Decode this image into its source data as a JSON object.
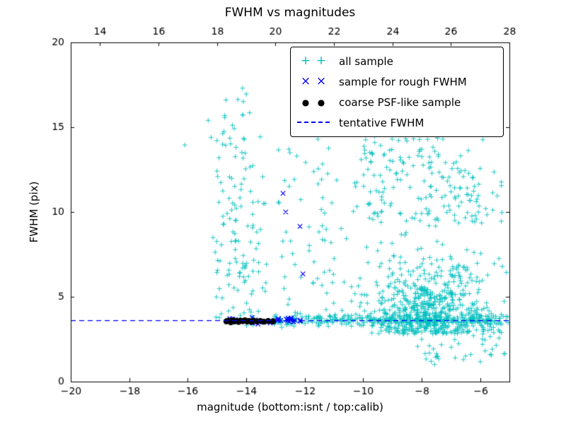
{
  "chart_data": {
    "type": "scatter",
    "title": "FWHM vs magnitudes",
    "xlabel": "magnitude (bottom:isnt / top:calib)",
    "ylabel": "FWHM (pix)",
    "xlim": [
      -20,
      -5
    ],
    "ylim": [
      0,
      20
    ],
    "x_ticks_bottom": [
      -20,
      -18,
      -16,
      -14,
      -12,
      -10,
      -8,
      -6
    ],
    "x_ticks_top_calib": [
      14,
      16,
      18,
      20,
      22,
      24,
      26,
      28
    ],
    "calib_offset": 33,
    "y_ticks": [
      0,
      5,
      10,
      15,
      20
    ],
    "grid": false,
    "legend_position": "upper-right",
    "tentative_fwhm": 3.6,
    "legend_glyphs": {
      "plus": "+",
      "x": "×",
      "circle": "●"
    },
    "series": [
      {
        "name": "all sample",
        "marker": "plus",
        "color": "#00bfbf",
        "alpha": 0.85,
        "clusters": [
          {
            "seed": 11,
            "n": 75,
            "x": {
              "type": "uniform",
              "min": -15.15,
              "max": -13.3
            },
            "y": {
              "type": "uniform",
              "min": 3.3,
              "max": 9.2
            }
          },
          {
            "seed": 12,
            "n": 50,
            "x": {
              "type": "uniform",
              "min": -15.05,
              "max": -13.35
            },
            "y": {
              "type": "uniform",
              "min": 9.2,
              "max": 14.6
            }
          },
          {
            "seed": 13,
            "n": 14,
            "x": {
              "type": "uniform",
              "min": -14.85,
              "max": -13.55
            },
            "y": {
              "type": "uniform",
              "min": 14.6,
              "max": 17.7
            }
          },
          {
            "seed": 14,
            "n": 26,
            "x": {
              "type": "uniform",
              "min": -12.95,
              "max": -11.9
            },
            "y": {
              "type": "uniform",
              "min": 3.9,
              "max": 14.2
            }
          },
          {
            "seed": 15,
            "n": 16,
            "x": {
              "type": "uniform",
              "min": -11.75,
              "max": -10.85
            },
            "y": {
              "type": "uniform",
              "min": 9.8,
              "max": 16.6
            }
          },
          {
            "seed": 16,
            "n": 620,
            "x": {
              "type": "normal",
              "mean": -7.8,
              "sd": 1.05,
              "min": -10.4,
              "max": -5.05
            },
            "y": {
              "type": "halfnormal",
              "base": 2.8,
              "sd": 2.1,
              "max": 9.6
            }
          },
          {
            "seed": 17,
            "n": 150,
            "x": {
              "type": "uniform",
              "min": -10.05,
              "max": -5.9
            },
            "y": {
              "type": "uniform",
              "min": 9.3,
              "max": 14.7
            }
          },
          {
            "seed": 18,
            "n": 30,
            "x": {
              "type": "uniform",
              "min": -7.3,
              "max": -5.15
            },
            "y": {
              "type": "uniform",
              "min": 9.0,
              "max": 13.0
            }
          },
          {
            "seed": 19,
            "n": 300,
            "x": {
              "type": "uniform",
              "min": -13.05,
              "max": -5.0
            },
            "y": {
              "type": "normal",
              "mean": 3.62,
              "sd": 0.16,
              "min": 3.1,
              "max": 4.2
            }
          },
          {
            "seed": 20,
            "n": 45,
            "x": {
              "type": "uniform",
              "min": -8.2,
              "max": -5.05
            },
            "y": {
              "type": "uniform",
              "min": 1.0,
              "max": 3.1
            }
          },
          {
            "seed": 21,
            "n": 26,
            "x": {
              "type": "uniform",
              "min": -12.0,
              "max": -10.45
            },
            "y": {
              "type": "uniform",
              "min": 3.9,
              "max": 9.6
            }
          },
          {
            "seed": 22,
            "n": 12,
            "x": {
              "type": "uniform",
              "min": -10.45,
              "max": -9.4
            },
            "y": {
              "type": "uniform",
              "min": 9.5,
              "max": 13.5
            }
          }
        ],
        "outliers": [
          [
            -16.1,
            13.95
          ],
          [
            -15.3,
            15.4
          ],
          [
            -15.2,
            14.4
          ],
          [
            -8.8,
            17.0
          ],
          [
            -8.0,
            16.2
          ],
          [
            -7.2,
            15.6
          ],
          [
            -6.5,
            16.8
          ],
          [
            -9.3,
            15.1
          ]
        ]
      },
      {
        "name": "sample for rough FWHM",
        "marker": "x",
        "color": "#0000ff",
        "alpha": 1,
        "clusters": [
          {
            "seed": 31,
            "n": 36,
            "x": {
              "type": "uniform",
              "min": -14.65,
              "max": -12.05
            },
            "y": {
              "type": "normal",
              "mean": 3.63,
              "sd": 0.1,
              "min": 3.35,
              "max": 3.95
            }
          }
        ],
        "outliers": [
          [
            -12.74,
            11.1
          ],
          [
            -12.65,
            10.0
          ],
          [
            -12.16,
            9.15
          ],
          [
            -12.06,
            6.35
          ]
        ]
      },
      {
        "name": "coarse PSF-like sample",
        "marker": "circle",
        "color": "#000000",
        "alpha": 1,
        "points": [
          [
            -14.68,
            3.55
          ],
          [
            -14.6,
            3.6
          ],
          [
            -14.53,
            3.5
          ],
          [
            -14.46,
            3.62
          ],
          [
            -14.4,
            3.55
          ],
          [
            -14.33,
            3.58
          ],
          [
            -14.26,
            3.52
          ],
          [
            -14.2,
            3.6
          ],
          [
            -14.12,
            3.56
          ],
          [
            -14.04,
            3.62
          ],
          [
            -13.97,
            3.54
          ],
          [
            -13.9,
            3.58
          ],
          [
            -13.82,
            3.52
          ],
          [
            -13.74,
            3.6
          ],
          [
            -13.64,
            3.55
          ],
          [
            -13.52,
            3.58
          ],
          [
            -13.4,
            3.53
          ],
          [
            -13.25,
            3.57
          ],
          [
            -13.08,
            3.55
          ]
        ]
      },
      {
        "name": "tentative FWHM",
        "marker": "dashed-line",
        "color": "#0000ff",
        "y": 3.6
      }
    ]
  }
}
